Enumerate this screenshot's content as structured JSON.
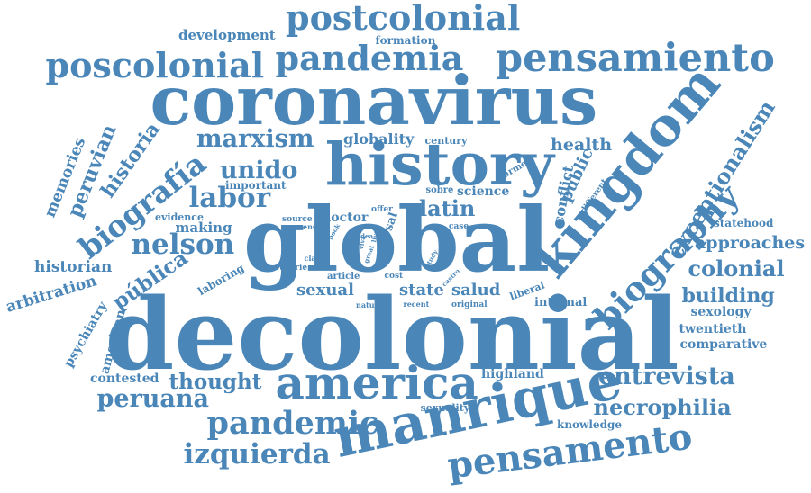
{
  "accent_color": "#4a86b8",
  "words": [
    {
      "text": "decolonial"
    },
    {
      "text": "coronavirus"
    },
    {
      "text": "global"
    },
    {
      "text": "history"
    },
    {
      "text": "manrique"
    },
    {
      "text": "kingdom"
    },
    {
      "text": "america"
    },
    {
      "text": "postcolonial"
    },
    {
      "text": "pandemia"
    },
    {
      "text": "pensamiento"
    },
    {
      "text": "poscolonial"
    },
    {
      "text": "pensamento"
    },
    {
      "text": "pandemic"
    },
    {
      "text": "izquierda"
    },
    {
      "text": "biography"
    },
    {
      "text": "exceptionalism"
    },
    {
      "text": "biografía"
    },
    {
      "text": "nelson"
    },
    {
      "text": "labor"
    },
    {
      "text": "marxism"
    },
    {
      "text": "unido"
    },
    {
      "text": "historia"
    },
    {
      "text": "peruvian"
    },
    {
      "text": "memories"
    },
    {
      "text": "development"
    },
    {
      "text": "formation"
    },
    {
      "text": "thought"
    },
    {
      "text": "peruana"
    },
    {
      "text": "contested"
    },
    {
      "text": "entrevista"
    },
    {
      "text": "necrophilia"
    },
    {
      "text": "colonial"
    },
    {
      "text": "building"
    },
    {
      "text": "approaches"
    },
    {
      "text": "statehood"
    },
    {
      "text": "sexology"
    },
    {
      "text": "twentieth"
    },
    {
      "text": "comparative"
    },
    {
      "text": "knowledge"
    },
    {
      "text": "highland"
    },
    {
      "text": "sexuality"
    },
    {
      "text": "latin"
    },
    {
      "text": "health"
    },
    {
      "text": "public"
    },
    {
      "text": "conflict"
    },
    {
      "text": "science"
    },
    {
      "text": "globality"
    },
    {
      "text": "century"
    },
    {
      "text": "armed"
    },
    {
      "text": "different"
    },
    {
      "text": "sobre"
    },
    {
      "text": "doctor"
    },
    {
      "text": "offer"
    },
    {
      "text": "case"
    },
    {
      "text": "sexual"
    },
    {
      "text": "state"
    },
    {
      "text": "salud"
    },
    {
      "text": "internal"
    },
    {
      "text": "liberal"
    },
    {
      "text": "original"
    },
    {
      "text": "recent"
    },
    {
      "text": "nature"
    },
    {
      "text": "cost"
    },
    {
      "text": "article"
    },
    {
      "text": "nation"
    },
    {
      "text": "great"
    },
    {
      "text": "costo"
    },
    {
      "text": "castro"
    },
    {
      "text": "study"
    },
    {
      "text": "live"
    },
    {
      "text": "viva"
    },
    {
      "text": "idea"
    },
    {
      "text": "claim"
    },
    {
      "text": "countrie"
    },
    {
      "text": "book"
    },
    {
      "text": "sense"
    },
    {
      "text": "source"
    },
    {
      "text": "sal"
    },
    {
      "text": "important"
    },
    {
      "text": "evidence"
    },
    {
      "text": "making"
    },
    {
      "text": "historian"
    },
    {
      "text": "arbitration"
    },
    {
      "text": "pública"
    },
    {
      "text": "laboring"
    },
    {
      "text": "psychiatry"
    },
    {
      "text": "american"
    }
  ]
}
